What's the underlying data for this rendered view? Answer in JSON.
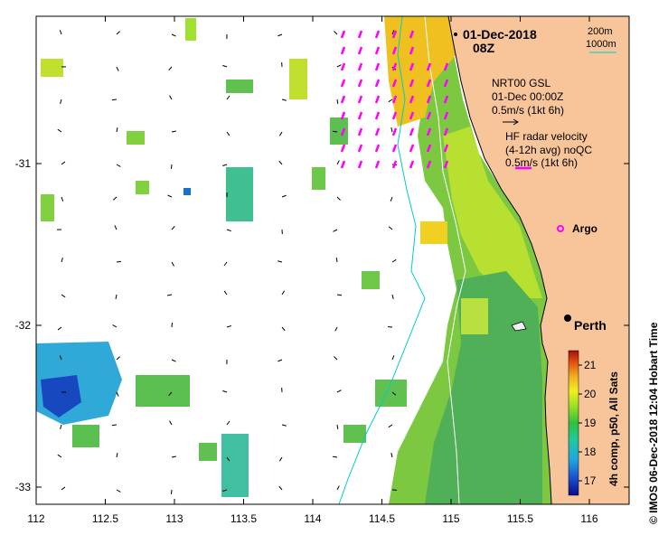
{
  "title": {
    "date": "01-Dec-2018",
    "time": "08Z"
  },
  "isobaths": {
    "line1": "200m",
    "line2": "1000m"
  },
  "model_legend": {
    "line1": "NRT00 GSL",
    "line2": "01-Dec 00:00Z",
    "line3": "0.5m/s (1kt 6h)"
  },
  "radar_legend": {
    "line1": "HF radar velocity",
    "line2": "(4-12h avg) noQC",
    "line3": "0.5m/s (1kt 6h)"
  },
  "argo_label": "Argo",
  "city_label": "Perth",
  "colorbar": {
    "label": "4h comp, p50, All Sats",
    "ticks": [
      "17",
      "18",
      "19",
      "20",
      "21"
    ],
    "min": 16.5,
    "max": 21.5
  },
  "credit": "© IMOS 06-Dec-2018 12:04 Hobart Time",
  "x_ticks": [
    "112",
    "112.5",
    "113",
    "113.5",
    "114",
    "114.5",
    "115",
    "115.5",
    "116"
  ],
  "y_ticks": [
    "-31",
    "-32",
    "-33"
  ],
  "colors": {
    "land": "#f8c59a",
    "radar_arrows": "#ff00ff",
    "isobath_1000": "#00cccc",
    "isobath_200": "#ffffff"
  }
}
